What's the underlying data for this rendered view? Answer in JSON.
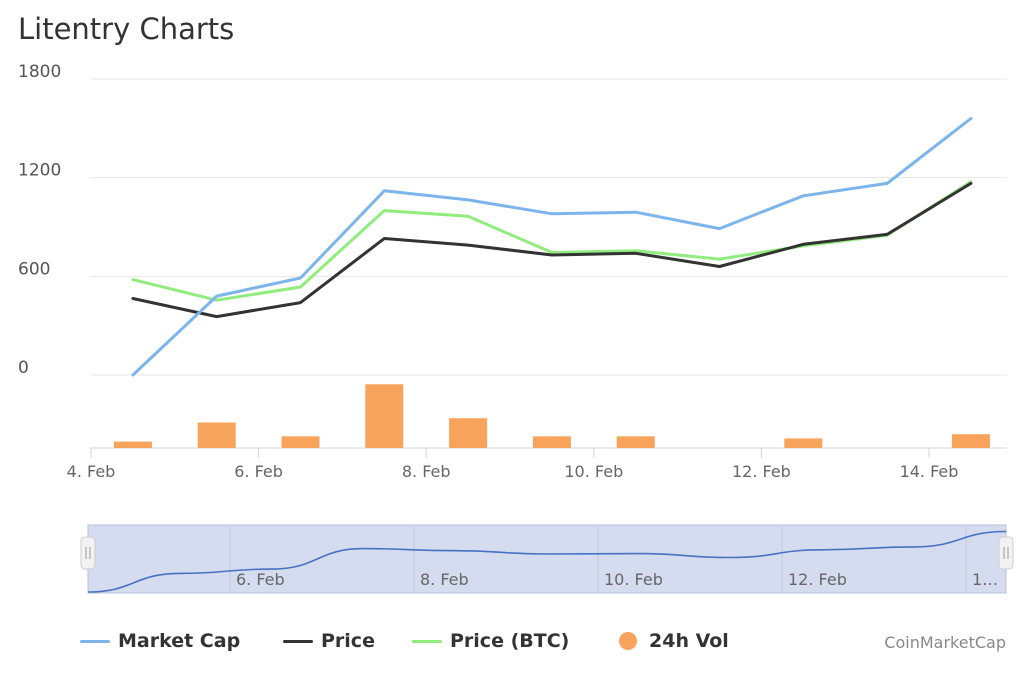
{
  "title": "Litentry Charts",
  "credits": "CoinMarketCap",
  "colors": {
    "market_cap": "#7cb5ec",
    "price": "#333333",
    "price_btc": "#90ed7d",
    "volume": "#f7a35c",
    "navigator_fill": "#d6dcef",
    "navigator_line": "#4572c4"
  },
  "navigator": {
    "tick_labels": [
      "6. Feb",
      "8. Feb",
      "10. Feb",
      "12. Feb",
      "1…"
    ]
  },
  "chart_data": {
    "type": "line",
    "x_tick_labels": [
      "4. Feb",
      "6. Feb",
      "8. Feb",
      "10. Feb",
      "12. Feb",
      "14. Feb"
    ],
    "y_tick_labels": [
      "0",
      "600",
      "1200",
      "1800"
    ],
    "ylim": [
      0,
      1800
    ],
    "grid": true,
    "legend_position": "bottom",
    "x": [
      "4.5 Feb",
      "5.5 Feb",
      "6.5 Feb",
      "7.5 Feb",
      "8.5 Feb",
      "9.5 Feb",
      "10.5 Feb",
      "11.5 Feb",
      "12.5 Feb",
      "13.5 Feb",
      "14.5 Feb"
    ],
    "series": [
      {
        "name": "Market Cap",
        "values": [
          0,
          480,
          590,
          1120,
          1065,
          980,
          990,
          890,
          1090,
          1165,
          1560
        ]
      },
      {
        "name": "Price",
        "values": [
          465,
          355,
          440,
          830,
          790,
          730,
          740,
          660,
          795,
          855,
          1165
        ]
      },
      {
        "name": "Price (BTC)",
        "values": [
          580,
          455,
          535,
          1000,
          965,
          745,
          755,
          705,
          785,
          850,
          1175
        ]
      }
    ],
    "volume": {
      "name": "24h Vol",
      "values": [
        6,
        24,
        11,
        60,
        28,
        11,
        11,
        0,
        9,
        0,
        13
      ]
    }
  }
}
